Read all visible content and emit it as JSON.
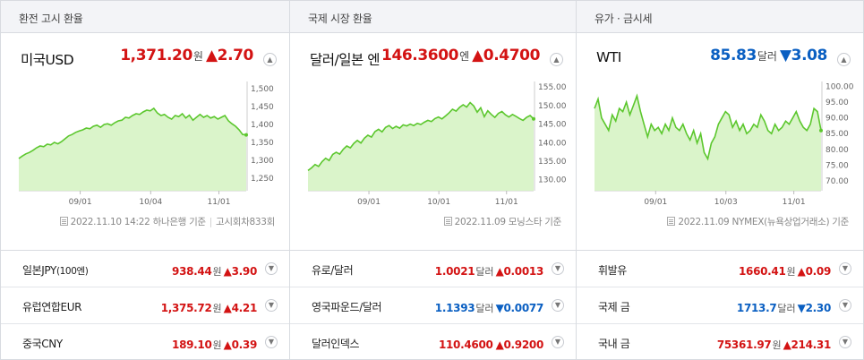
{
  "panels": [
    {
      "header": "환전 고시 환율",
      "main": {
        "name": "미국USD",
        "price": "1,371.20",
        "unit": "원",
        "change": "▲2.70",
        "direction": "up"
      },
      "source": {
        "date": "2022.11.10 14:22 하나은행 기준",
        "extra": "고시회차833회"
      },
      "chart_data": {
        "type": "area",
        "xticks": [
          "09/01",
          "10/04",
          "11/01"
        ],
        "yticks": [
          "1,500",
          "1,450",
          "1,400",
          "1,350",
          "1,300",
          "1,250"
        ],
        "ylim": [
          1225,
          1515
        ],
        "values": [
          1305,
          1312,
          1318,
          1322,
          1328,
          1335,
          1340,
          1338,
          1345,
          1343,
          1350,
          1346,
          1352,
          1360,
          1368,
          1372,
          1378,
          1382,
          1385,
          1390,
          1388,
          1395,
          1398,
          1392,
          1400,
          1402,
          1398,
          1405,
          1410,
          1412,
          1420,
          1418,
          1425,
          1430,
          1428,
          1435,
          1440,
          1438,
          1445,
          1432,
          1425,
          1428,
          1420,
          1415,
          1425,
          1422,
          1430,
          1418,
          1426,
          1412,
          1420,
          1428,
          1420,
          1425,
          1418,
          1422,
          1415,
          1420,
          1425,
          1410,
          1402,
          1395,
          1385,
          1372,
          1371
        ]
      },
      "rows": [
        {
          "name": "일본JPY",
          "sub": "(100엔)",
          "price": "938.44",
          "unit": "원",
          "change": "▲3.90",
          "direction": "up"
        },
        {
          "name": "유럽연합EUR",
          "sub": "",
          "price": "1,375.72",
          "unit": "원",
          "change": "▲4.21",
          "direction": "up"
        },
        {
          "name": "중국CNY",
          "sub": "",
          "price": "189.10",
          "unit": "원",
          "change": "▲0.39",
          "direction": "up"
        }
      ]
    },
    {
      "header": "국제 시장 환율",
      "main": {
        "name": "달러/일본 엔",
        "price": "146.3600",
        "unit": "엔",
        "change": "▲0.4700",
        "direction": "up"
      },
      "source": {
        "date": "2022.11.09 모닝스타 기준",
        "extra": ""
      },
      "chart_data": {
        "type": "area",
        "xticks": [
          "09/01",
          "10/01",
          "11/01"
        ],
        "yticks": [
          "155.00",
          "150.00",
          "145.00",
          "140.00",
          "135.00",
          "130.00"
        ],
        "ylim": [
          128,
          156
        ],
        "values": [
          132.5,
          133.2,
          134.1,
          133.6,
          134.9,
          135.8,
          135.2,
          136.8,
          137.4,
          136.9,
          138.2,
          139.1,
          138.6,
          139.8,
          140.6,
          139.9,
          141.2,
          142.0,
          141.5,
          143.0,
          143.6,
          142.9,
          144.1,
          144.6,
          143.8,
          144.4,
          143.9,
          144.8,
          144.5,
          145.0,
          144.6,
          145.2,
          144.9,
          145.5,
          146.0,
          145.7,
          146.5,
          146.9,
          146.4,
          147.2,
          148.0,
          149.0,
          148.5,
          149.5,
          150.2,
          149.6,
          150.8,
          149.9,
          148.2,
          149.4,
          147.0,
          148.6,
          147.6,
          146.8,
          147.9,
          148.4,
          147.5,
          146.9,
          147.6,
          147.1,
          146.5,
          146.0,
          146.8,
          147.3,
          146.4
        ]
      },
      "rows": [
        {
          "name": "유로/달러",
          "sub": "",
          "price": "1.0021",
          "unit": "달러",
          "change": "▲0.0013",
          "direction": "up"
        },
        {
          "name": "영국파운드/달러",
          "sub": "",
          "price": "1.1393",
          "unit": "달러",
          "change": "▼0.0077",
          "direction": "down"
        },
        {
          "name": "달러인덱스",
          "sub": "",
          "price": "110.4600",
          "unit": "",
          "change": "▲0.9200",
          "direction": "up"
        }
      ]
    },
    {
      "header": "유가 · 금시세",
      "main": {
        "name": "WTI",
        "price": "85.83",
        "unit": "달러",
        "change": "▼3.08",
        "direction": "down"
      },
      "source": {
        "date": "2022.11.09 NYMEX(뉴욕상업거래소) 기준",
        "extra": ""
      },
      "chart_data": {
        "type": "area",
        "xticks": [
          "09/01",
          "10/03",
          "11/01"
        ],
        "yticks": [
          "100.00",
          "95.00",
          "90.00",
          "85.00",
          "80.00",
          "75.00",
          "70.00"
        ],
        "ylim": [
          68,
          101
        ],
        "values": [
          93,
          96,
          90,
          88,
          86,
          91,
          89,
          93,
          92,
          95,
          91,
          94,
          97,
          92,
          88,
          84,
          88,
          86,
          87,
          85,
          88,
          86,
          90,
          87,
          86,
          88,
          85,
          83,
          86,
          82,
          85,
          79,
          77,
          82,
          84,
          88,
          90,
          92,
          91,
          87,
          89,
          86,
          88,
          85,
          86,
          88,
          87,
          91,
          89,
          86,
          85,
          88,
          86,
          87,
          89,
          88,
          90,
          92,
          89,
          87,
          86,
          88,
          93,
          92,
          86
        ]
      },
      "rows": [
        {
          "name": "휘발유",
          "sub": "",
          "price": "1660.41",
          "unit": "원",
          "change": "▲0.09",
          "direction": "up"
        },
        {
          "name": "국제 금",
          "sub": "",
          "price": "1713.7",
          "unit": "달러",
          "change": "▼2.30",
          "direction": "down"
        },
        {
          "name": "국내 금",
          "sub": "",
          "price": "75361.97",
          "unit": "원",
          "change": "▲214.31",
          "direction": "up"
        }
      ]
    }
  ],
  "icons": {
    "collapse": "chevron-up-icon",
    "expand": "chevron-down-icon",
    "source": "document-icon"
  },
  "colors": {
    "up": "#d31313",
    "down": "#0a5fc2",
    "line": "#5cc72e",
    "fill": "#d6f3c4"
  }
}
